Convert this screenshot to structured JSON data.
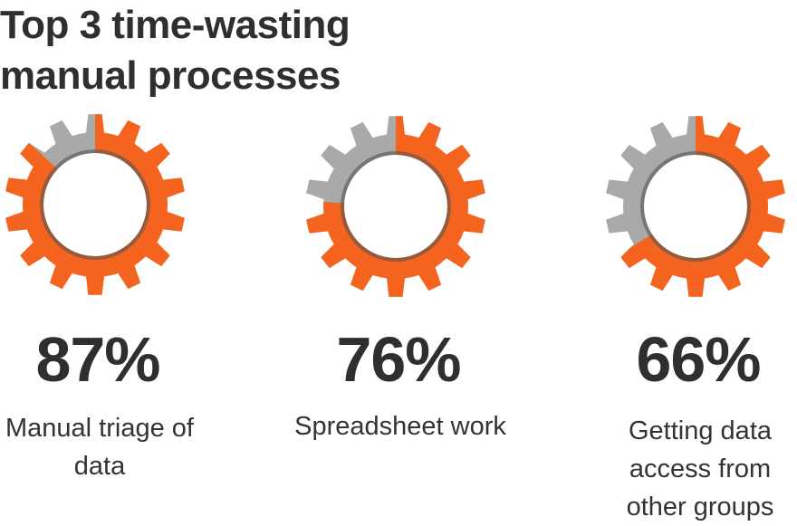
{
  "chart_data": {
    "type": "gear-gauge",
    "title": "Top 3 time-wasting manual processes",
    "categories": [
      "Manual triage of data",
      "Spreadsheet work",
      "Getting data access from other groups"
    ],
    "values": [
      87,
      76,
      66
    ],
    "value_labels": [
      "87%",
      "76%",
      "66%"
    ],
    "color": "#f5641e",
    "rest_color": "#a9a9a9"
  }
}
